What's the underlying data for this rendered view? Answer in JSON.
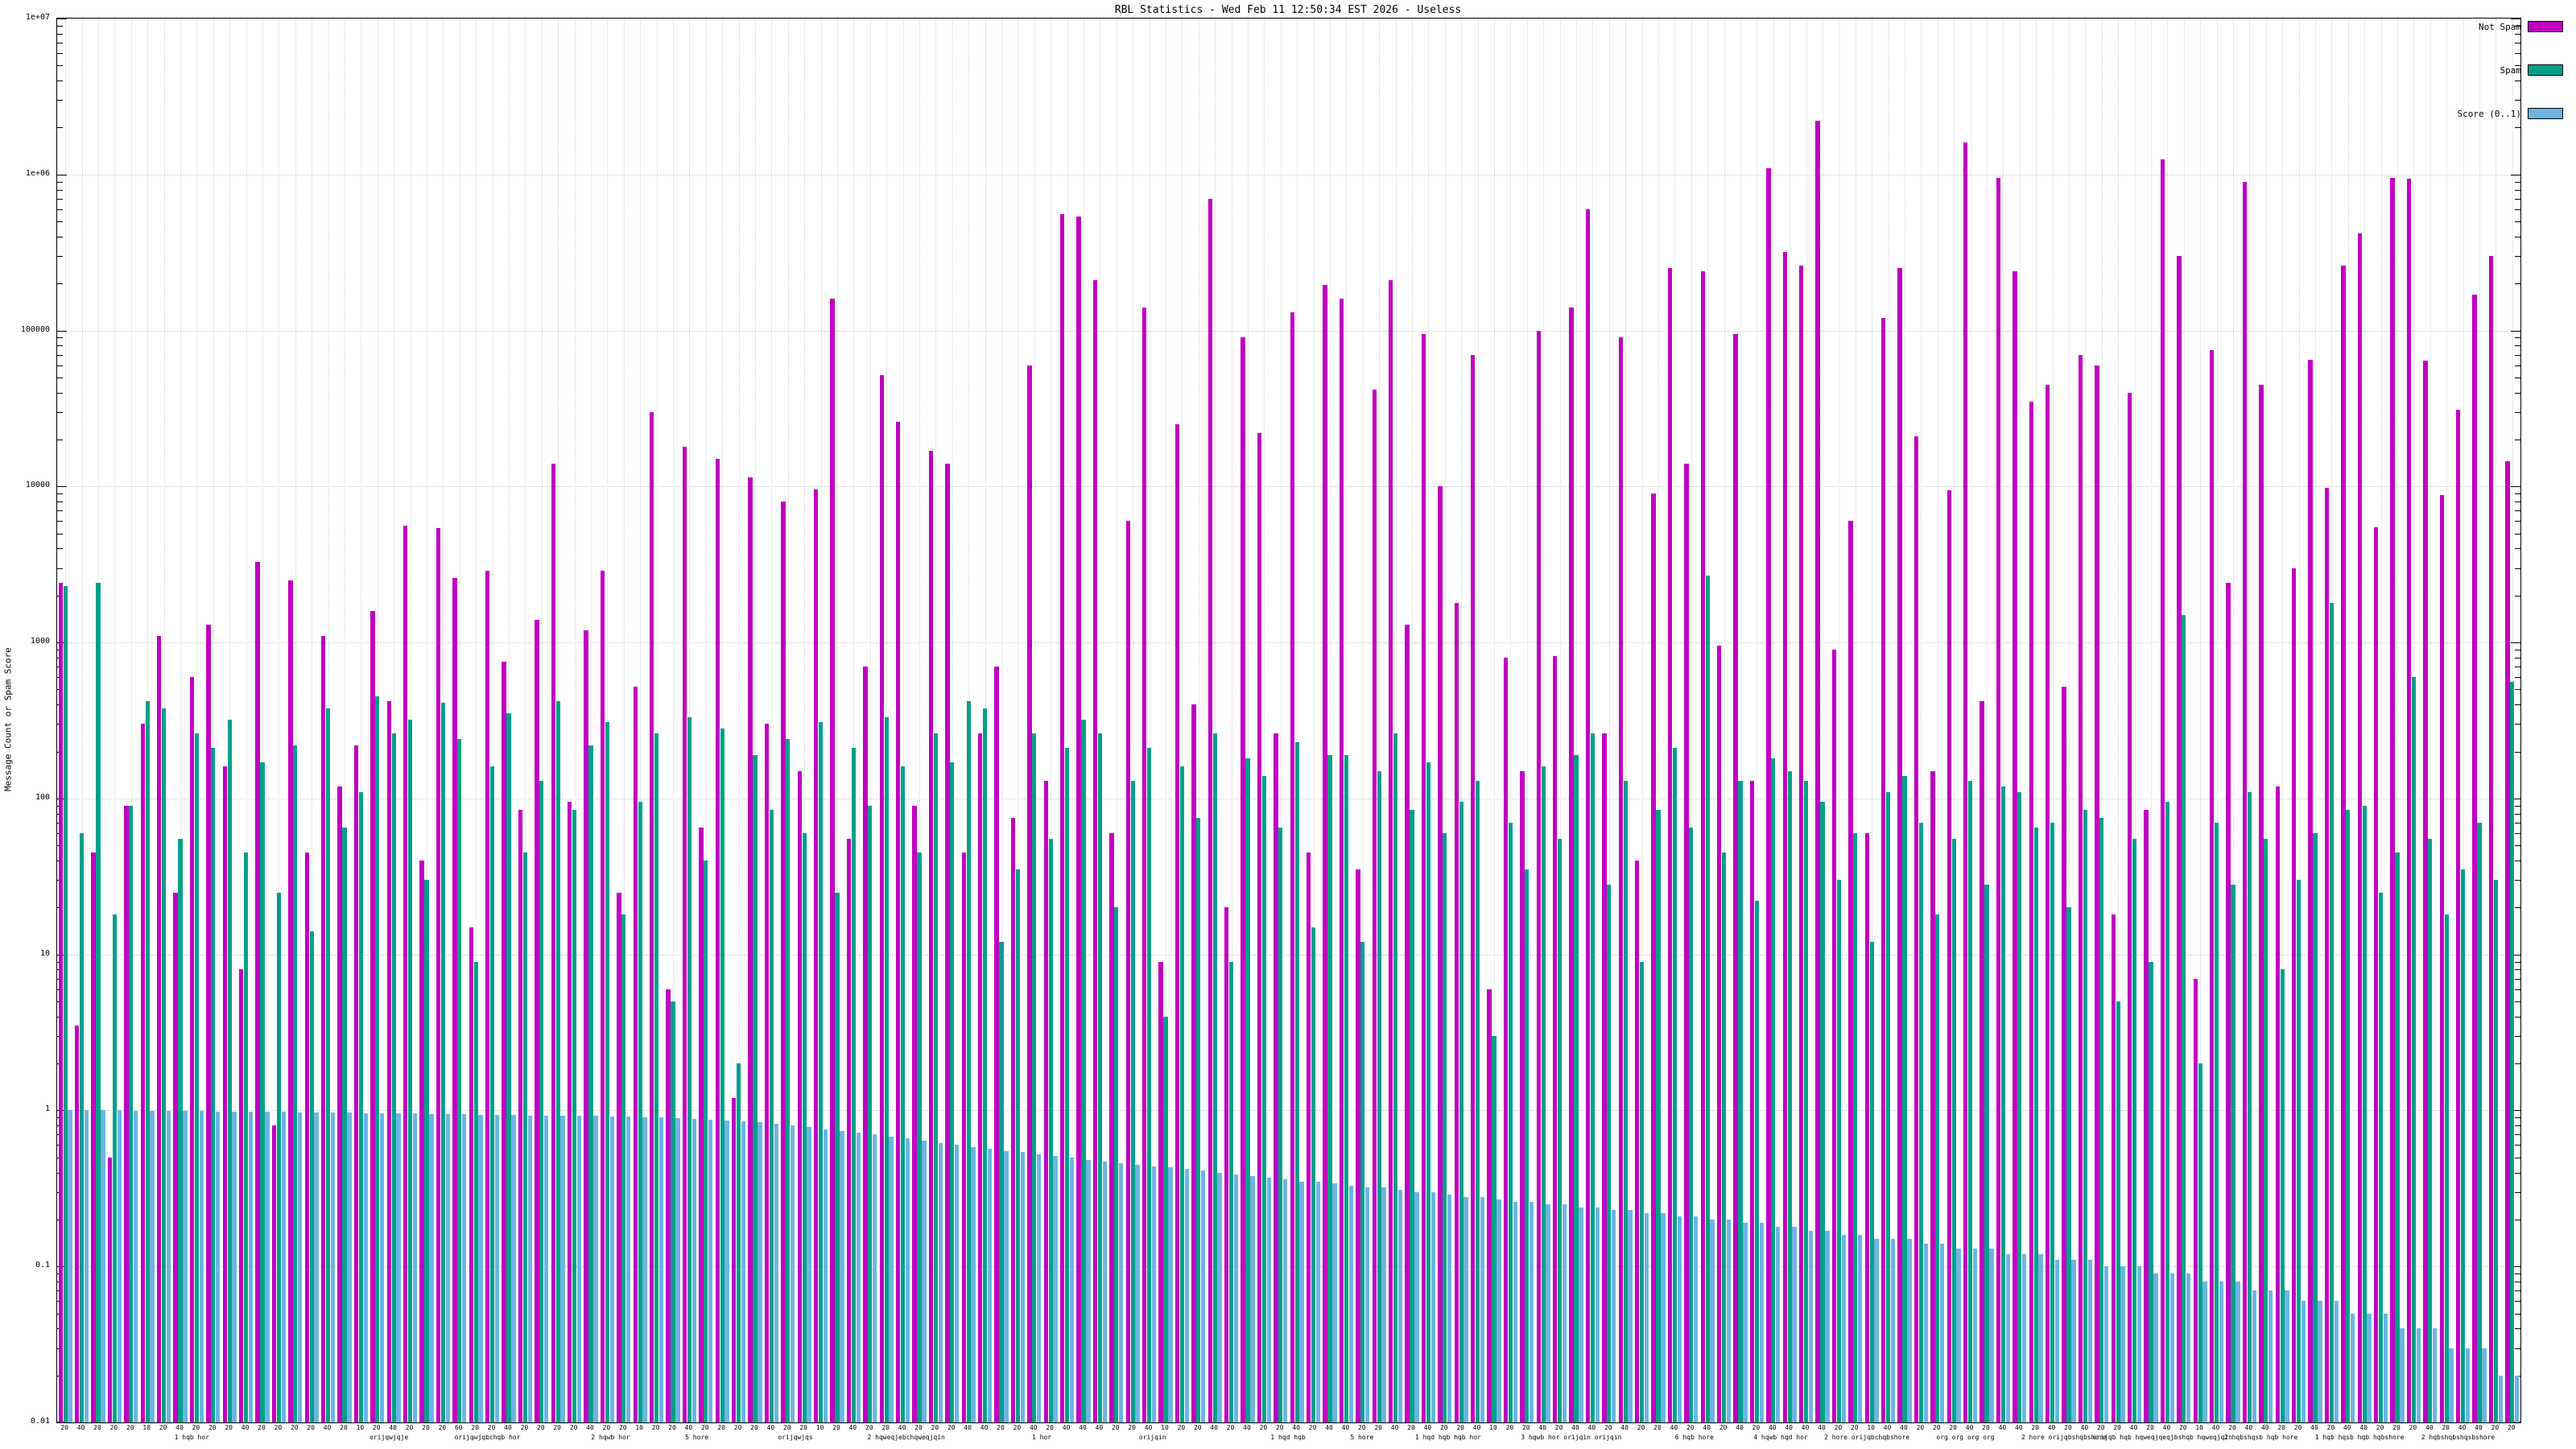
{
  "chart_data": {
    "type": "bar",
    "title": "RBL Statistics - Wed Feb 11 12:50:34 EST 2026 - Useless",
    "ylabel": "Message Count or Spam Score",
    "xlabel": "",
    "y_scale": "log10",
    "ylim": [
      0.01,
      10000000
    ],
    "y_tick_labels": [
      "0.01",
      "0.1",
      "1",
      "10",
      "100",
      "1000",
      "10000",
      "100000",
      "1e+06",
      "1e+07"
    ],
    "grid": true,
    "legend_position": "top-right",
    "legend": [
      {
        "label": "Not Spam",
        "color": "#C000C0"
      },
      {
        "label": "Spam",
        "color": "#00A08A"
      },
      {
        "label": "Score (0..1)",
        "color": "#6EB4E2"
      }
    ],
    "categories": [
      "20",
      "40",
      "20",
      "20",
      "20",
      "10",
      "20",
      "40",
      "20",
      "20",
      "20",
      "40",
      "20",
      "20",
      "20",
      "20",
      "40",
      "20",
      "10",
      "20",
      "40",
      "20",
      "20",
      "20",
      "60",
      "20",
      "20",
      "40",
      "20",
      "20",
      "20",
      "20",
      "40",
      "20",
      "20",
      "10",
      "20",
      "20",
      "40",
      "20",
      "20",
      "20",
      "20",
      "40",
      "20",
      "20",
      "10",
      "20",
      "40",
      "20",
      "20",
      "40",
      "20",
      "20",
      "20",
      "40",
      "40",
      "20",
      "20",
      "40",
      "20",
      "40",
      "40",
      "40",
      "20",
      "20",
      "40",
      "10",
      "20",
      "20",
      "40",
      "20",
      "40",
      "20",
      "20",
      "40",
      "20",
      "40",
      "40",
      "20",
      "20",
      "40",
      "20",
      "40",
      "20",
      "20",
      "40",
      "10",
      "20",
      "20",
      "40",
      "20",
      "40",
      "40",
      "20",
      "40",
      "20",
      "20",
      "40",
      "20",
      "40",
      "20",
      "40",
      "20",
      "40",
      "40",
      "40",
      "40",
      "20",
      "20",
      "10",
      "40",
      "40",
      "20",
      "20",
      "20",
      "40",
      "20",
      "40",
      "40",
      "20",
      "40",
      "20",
      "40",
      "20",
      "20",
      "40",
      "20",
      "40",
      "20",
      "10",
      "40",
      "20",
      "40",
      "40",
      "20",
      "20",
      "40",
      "20",
      "40",
      "40",
      "20",
      "20",
      "20",
      "40",
      "20",
      "40",
      "40",
      "20",
      "20"
    ],
    "series": [
      {
        "name": "Not Spam",
        "color": "#C000C0",
        "values": [
          2400,
          3.5,
          45,
          0.5,
          90,
          300,
          1100,
          25,
          600,
          1300,
          160,
          8,
          3300,
          0.8,
          2500,
          45,
          1100,
          120,
          220,
          1600,
          420,
          5600,
          40,
          5400,
          2600,
          15,
          2900,
          750,
          85,
          1400,
          14000,
          95,
          1200,
          2900,
          25,
          520,
          30000,
          6,
          18000,
          65,
          15000,
          1.2,
          11500,
          300,
          8000,
          150,
          9600,
          160000,
          55,
          700,
          52000,
          26000,
          90,
          17000,
          14000,
          45,
          260,
          700,
          75,
          60000,
          130,
          560000,
          540000,
          210000,
          60,
          6000,
          140000,
          9,
          25000,
          400,
          700000,
          20,
          90000,
          22000,
          260,
          130000,
          45,
          195000,
          160000,
          35,
          42000,
          210000,
          1300,
          95000,
          10000,
          1800,
          70000,
          6,
          800,
          150,
          100000,
          820,
          140000,
          600000,
          260,
          90000,
          40,
          9000,
          250000,
          14000,
          240000,
          950,
          95000,
          130,
          1100000,
          320000,
          260000,
          2200000,
          900,
          6000,
          60,
          120000,
          250000,
          21000,
          150,
          9500,
          1600000,
          420,
          950000,
          240000,
          35000,
          45000,
          520,
          70000,
          60000,
          18,
          40000,
          85,
          1250000,
          300000,
          7,
          75000,
          2400,
          900000,
          45000,
          120,
          3000,
          65000,
          9800,
          260000,
          420000,
          5500,
          950000,
          940000,
          64000,
          8800,
          31000,
          170000,
          300000,
          14500
        ]
      },
      {
        "name": "Spam",
        "color": "#00A08A",
        "values": [
          2300,
          60,
          2400,
          18,
          90,
          420,
          380,
          55,
          260,
          210,
          320,
          45,
          170,
          25,
          220,
          14,
          380,
          65,
          110,
          450,
          260,
          320,
          30,
          410,
          240,
          9,
          160,
          350,
          45,
          130,
          420,
          85,
          220,
          310,
          18,
          95,
          260,
          5,
          330,
          40,
          280,
          2,
          190,
          85,
          240,
          60,
          310,
          25,
          210,
          90,
          330,
          160,
          45,
          260,
          170,
          420,
          380,
          12,
          35,
          260,
          55,
          210,
          320,
          260,
          20,
          130,
          210,
          4,
          160,
          75,
          260,
          9,
          180,
          140,
          65,
          230,
          15,
          190,
          190,
          12,
          150,
          260,
          85,
          170,
          60,
          95,
          130,
          3,
          70,
          35,
          160,
          55,
          190,
          260,
          28,
          130,
          9,
          85,
          210,
          65,
          2700,
          45,
          130,
          22,
          180,
          150,
          130,
          95,
          30,
          60,
          12,
          110,
          140,
          70,
          18,
          55,
          130,
          28,
          120,
          110,
          65,
          70,
          20,
          85,
          75,
          5,
          55,
          9,
          95,
          1500,
          2,
          70,
          28,
          110,
          55,
          8,
          30,
          60,
          1800,
          85,
          90,
          25,
          45,
          600,
          55,
          18,
          35,
          70,
          30,
          560
        ]
      },
      {
        "name": "Score (0..1)",
        "color": "#6EB4E2",
        "values": [
          1.0,
          1.0,
          1.0,
          1.0,
          0.99,
          0.99,
          0.99,
          0.99,
          0.99,
          0.98,
          0.98,
          0.98,
          0.98,
          0.98,
          0.97,
          0.97,
          0.97,
          0.97,
          0.96,
          0.96,
          0.96,
          0.96,
          0.95,
          0.95,
          0.95,
          0.94,
          0.94,
          0.94,
          0.93,
          0.93,
          0.93,
          0.92,
          0.92,
          0.91,
          0.91,
          0.9,
          0.9,
          0.89,
          0.88,
          0.87,
          0.86,
          0.85,
          0.84,
          0.82,
          0.8,
          0.78,
          0.76,
          0.74,
          0.72,
          0.7,
          0.68,
          0.66,
          0.64,
          0.62,
          0.6,
          0.58,
          0.57,
          0.55,
          0.54,
          0.52,
          0.51,
          0.5,
          0.48,
          0.47,
          0.46,
          0.45,
          0.44,
          0.43,
          0.42,
          0.41,
          0.4,
          0.39,
          0.38,
          0.37,
          0.36,
          0.35,
          0.35,
          0.34,
          0.33,
          0.32,
          0.32,
          0.31,
          0.3,
          0.3,
          0.29,
          0.28,
          0.28,
          0.27,
          0.26,
          0.26,
          0.25,
          0.25,
          0.24,
          0.24,
          0.23,
          0.23,
          0.22,
          0.22,
          0.21,
          0.21,
          0.2,
          0.2,
          0.19,
          0.19,
          0.18,
          0.18,
          0.17,
          0.17,
          0.16,
          0.16,
          0.15,
          0.15,
          0.15,
          0.14,
          0.14,
          0.13,
          0.13,
          0.13,
          0.12,
          0.12,
          0.12,
          0.11,
          0.11,
          0.11,
          0.1,
          0.1,
          0.1,
          0.09,
          0.09,
          0.09,
          0.08,
          0.08,
          0.08,
          0.07,
          0.07,
          0.07,
          0.06,
          0.06,
          0.06,
          0.05,
          0.05,
          0.05,
          0.04,
          0.04,
          0.04,
          0.03,
          0.03,
          0.03,
          0.02,
          0.02
        ]
      }
    ],
    "x_group_labels": [
      {
        "pos": 0.055,
        "text": "1 hqb hor"
      },
      {
        "pos": 0.135,
        "text": "orijqwjqje"
      },
      {
        "pos": 0.175,
        "text": "orijqwjqbchqb hor"
      },
      {
        "pos": 0.225,
        "text": "2 hqwb hor"
      },
      {
        "pos": 0.26,
        "text": "5 hore"
      },
      {
        "pos": 0.3,
        "text": "orijqwjqs"
      },
      {
        "pos": 0.345,
        "text": "2 hqweqjebchqweqjqin"
      },
      {
        "pos": 0.4,
        "text": "1 hor"
      },
      {
        "pos": 0.445,
        "text": "orijqin"
      },
      {
        "pos": 0.5,
        "text": "1 hqd hqb"
      },
      {
        "pos": 0.53,
        "text": "5 hore"
      },
      {
        "pos": 0.565,
        "text": "1 hqd hqb hqb hor"
      },
      {
        "pos": 0.615,
        "text": "3 hqwb hor orijqin orijqin"
      },
      {
        "pos": 0.665,
        "text": "6 hqb hore"
      },
      {
        "pos": 0.7,
        "text": "4 hqwb hqd hor"
      },
      {
        "pos": 0.735,
        "text": "2 hore orijqbchqbshore"
      },
      {
        "pos": 0.775,
        "text": "org org org org"
      },
      {
        "pos": 0.815,
        "text": "2 hore orijqbshqbshore"
      },
      {
        "pos": 0.855,
        "text": "orijqb hqb hqweqjqeqjbshqb hqweqjqin"
      },
      {
        "pos": 0.895,
        "text": "2 hqbshqsb hqb hore"
      },
      {
        "pos": 0.935,
        "text": "1 hqb hqsb hqb hqbshore"
      },
      {
        "pos": 0.975,
        "text": "2 hqbshqbshqsbshore"
      }
    ]
  }
}
